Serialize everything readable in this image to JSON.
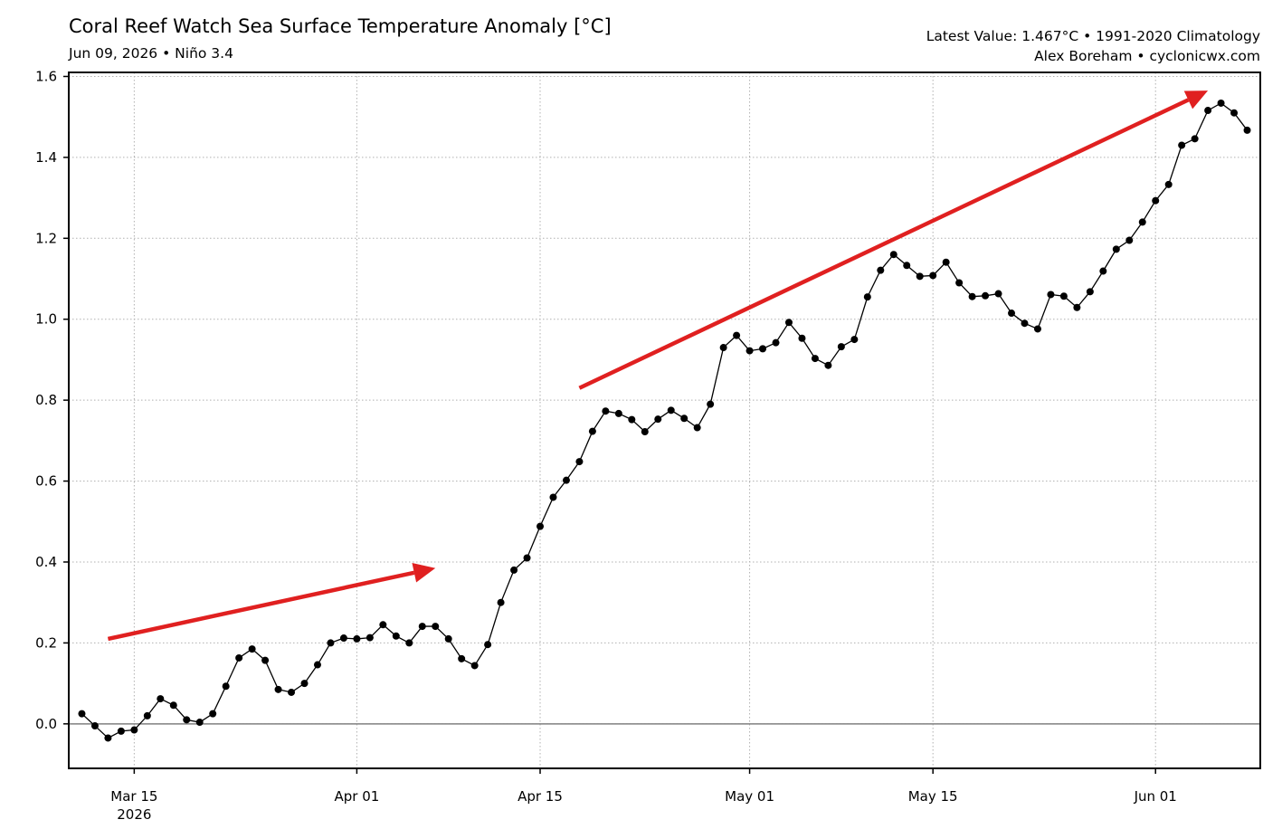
{
  "header": {
    "title": "Coral Reef Watch Sea Surface Temperature Anomaly [°C]",
    "subtitle": "Jun 09, 2026 • Niño 3.4",
    "info_line1": "Latest Value: 1.467°C • 1991-2020 Climatology",
    "info_line2": "Alex Boreham • cyclonicwx.com"
  },
  "colors": {
    "line": "#000000",
    "arrow": "#e02020",
    "grid": "#b0b0b0",
    "zero_line": "#808080"
  },
  "chart_data": {
    "type": "line",
    "title": "Coral Reef Watch Sea Surface Temperature Anomaly [°C]",
    "xlabel": "",
    "ylabel": "",
    "x_start": "2026-03-11",
    "x_end": "2026-06-09",
    "xlim": [
      "2026-03-10",
      "2026-06-09"
    ],
    "ylim": [
      -0.11,
      1.61
    ],
    "y_ticks": [
      "0.0",
      "0.2",
      "0.4",
      "0.6",
      "0.8",
      "1.0",
      "1.2",
      "1.4",
      "1.6"
    ],
    "x_ticks": [
      {
        "date": "2026-03-15",
        "label": "Mar 15",
        "sublabel": "2026"
      },
      {
        "date": "2026-04-01",
        "label": "Apr 01",
        "sublabel": ""
      },
      {
        "date": "2026-04-15",
        "label": "Apr 15",
        "sublabel": ""
      },
      {
        "date": "2026-05-01",
        "label": "May 01",
        "sublabel": ""
      },
      {
        "date": "2026-05-15",
        "label": "May 15",
        "sublabel": ""
      },
      {
        "date": "2026-06-01",
        "label": "Jun 01",
        "sublabel": ""
      }
    ],
    "grid": true,
    "series": [
      {
        "values": [
          0.025,
          -0.005,
          -0.035,
          -0.018,
          -0.015,
          0.02,
          0.062,
          0.046,
          0.01,
          0.004,
          0.025,
          0.093,
          0.163,
          0.185,
          0.157,
          0.085,
          0.078,
          0.1,
          0.146,
          0.2,
          0.212,
          0.21,
          0.213,
          0.245,
          0.217,
          0.2,
          0.241,
          0.241,
          0.21,
          0.161,
          0.144,
          0.196,
          0.3,
          0.38,
          0.41,
          0.488,
          0.56,
          0.602,
          0.648,
          0.723,
          0.773,
          0.767,
          0.752,
          0.722,
          0.753,
          0.775,
          0.755,
          0.732,
          0.79,
          0.93,
          0.96,
          0.922,
          0.927,
          0.942,
          0.992,
          0.953,
          0.903,
          0.886,
          0.932,
          0.95,
          1.055,
          1.121,
          1.16,
          1.133,
          1.106,
          1.108,
          1.141,
          1.09,
          1.056,
          1.058,
          1.063,
          1.015,
          0.99,
          0.976,
          1.061,
          1.057,
          1.029,
          1.068,
          1.119,
          1.173,
          1.195,
          1.24,
          1.293,
          1.333,
          1.43,
          1.446,
          1.516,
          1.534,
          1.51,
          1.467
        ]
      }
    ],
    "annotations": [
      {
        "type": "arrow",
        "from": {
          "date": "2026-03-13",
          "y": 0.21
        },
        "to": {
          "date": "2026-04-07",
          "y": 0.385
        }
      },
      {
        "type": "arrow",
        "from": {
          "date": "2026-04-18",
          "y": 0.83
        },
        "to": {
          "date": "2026-06-05",
          "y": 1.565
        }
      }
    ]
  }
}
